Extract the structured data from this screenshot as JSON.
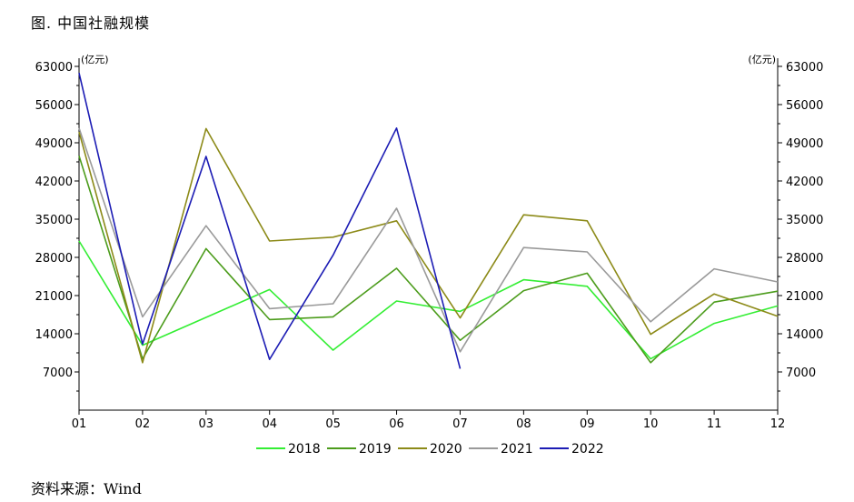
{
  "title": "图. 中国社融规模",
  "source": "资料来源：Wind",
  "chart_data": {
    "type": "line",
    "categories": [
      "01",
      "02",
      "03",
      "04",
      "05",
      "06",
      "07",
      "08",
      "09",
      "10",
      "11",
      "12"
    ],
    "left_unit": "(亿元)",
    "right_unit": "(亿元)",
    "ylim": [
      0,
      64500
    ],
    "yticks": [
      7000,
      14000,
      21000,
      28000,
      35000,
      42000,
      49000,
      56000,
      63000
    ],
    "grid": false,
    "legend_position": "bottom",
    "series": [
      {
        "name": "2018",
        "color": "#33ee33",
        "values": [
          31000,
          11900,
          17000,
          22100,
          11000,
          20000,
          18100,
          23900,
          22700,
          9400,
          15900,
          19100
        ]
      },
      {
        "name": "2019",
        "color": "#4c9c1c",
        "values": [
          46600,
          9400,
          29600,
          16600,
          17100,
          26000,
          12800,
          21900,
          25100,
          8700,
          19800,
          21800
        ]
      },
      {
        "name": "2020",
        "color": "#8c8a18",
        "values": [
          51000,
          8700,
          51600,
          31000,
          31700,
          34700,
          16900,
          35800,
          34700,
          13900,
          21300,
          17200
        ]
      },
      {
        "name": "2021",
        "color": "#9a9a9a",
        "values": [
          51700,
          17100,
          33800,
          18600,
          19500,
          37000,
          10700,
          29800,
          29000,
          16200,
          25900,
          23500
        ]
      },
      {
        "name": "2022",
        "color": "#1c1cb4",
        "values": [
          61800,
          12100,
          46500,
          9300,
          28400,
          51700,
          7600,
          null,
          null,
          null,
          null,
          null
        ]
      }
    ]
  }
}
